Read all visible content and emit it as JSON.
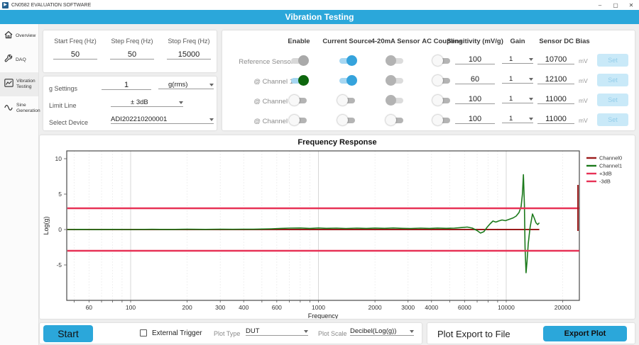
{
  "window": {
    "title": "CN0582 EVALUATION SOFTWARE",
    "controls": {
      "minimize": "–",
      "maximize": "▢",
      "close": "✕"
    }
  },
  "header": {
    "title": "Vibration Testing"
  },
  "sidebar": {
    "items": [
      {
        "label": "Overview",
        "icon": "home-icon",
        "selected": false
      },
      {
        "label": "DAQ",
        "icon": "wrench-icon",
        "selected": false
      },
      {
        "label": "Vibration Testing",
        "icon": "chart-icon",
        "selected": true
      },
      {
        "label": "Sine Generation",
        "icon": "sine-icon",
        "selected": false
      }
    ]
  },
  "sweep": {
    "fields": [
      {
        "label": "Start Freq (Hz)",
        "value": "50"
      },
      {
        "label": "Step Freq (Hz)",
        "value": "50"
      },
      {
        "label": "Stop Freq (Hz)",
        "value": "15000"
      }
    ]
  },
  "settings": {
    "g_label": "g Settings",
    "g_value": "1",
    "g_unit": "g(rms)",
    "limit_label": "Limit Line",
    "limit_value": "± 3dB",
    "device_label": "Select Device",
    "device_value": "ADI202210200001"
  },
  "channels": {
    "headers": [
      "Enable",
      "Current Source",
      "4-20mA Sensor",
      "AC Coupling",
      "Sensitivity (mV/g)",
      "Gain",
      "Sensor DC Bias"
    ],
    "mv_label": "mV",
    "set_label": "Set",
    "rows": [
      {
        "label": "Reference Sensor",
        "enable": "on-gray",
        "current_source": "on-blue",
        "sensor_420ma": "off-gray",
        "ac_coupling": "off",
        "sensitivity": "100",
        "gain": "1",
        "bias": "10700"
      },
      {
        "label": "@ Channel 1",
        "enable": "on-green",
        "current_source": "on-blue",
        "sensor_420ma": "off-gray",
        "ac_coupling": "off",
        "sensitivity": "60",
        "gain": "1",
        "bias": "12100"
      },
      {
        "label": "@ Channel 2",
        "enable": "off",
        "current_source": "off",
        "sensor_420ma": "off-gray",
        "ac_coupling": "off",
        "sensitivity": "100",
        "gain": "1",
        "bias": "11000"
      },
      {
        "label": "@ Channel 3",
        "enable": "off",
        "current_source": "off",
        "sensor_420ma": "off",
        "ac_coupling": "off",
        "sensitivity": "100",
        "gain": "1",
        "bias": "11000"
      }
    ]
  },
  "chart_data": {
    "type": "line",
    "title": "Frequency Response",
    "xlabel": "Frequency",
    "ylabel": "Log(g)",
    "x_scale": "log",
    "xlim": [
      46,
      24500
    ],
    "ylim": [
      -10,
      11.2
    ],
    "x_ticks": [
      60,
      100,
      200,
      300,
      400,
      600,
      1000,
      2000,
      3000,
      4000,
      6000,
      10000,
      20000
    ],
    "y_ticks": [
      -5,
      0,
      5,
      10
    ],
    "legend_position": "right",
    "grid": true,
    "series": [
      {
        "name": "Channel0",
        "color": "#9b1b1b",
        "width": 2,
        "x": [
          46,
          15000
        ],
        "y": [
          0,
          0
        ]
      },
      {
        "name": "Channel1",
        "color": "#1c7a1c",
        "width": 1.6,
        "x": [
          46,
          55,
          65,
          80,
          100,
          130,
          160,
          200,
          250,
          300,
          350,
          400,
          450,
          500,
          560,
          630,
          700,
          800,
          900,
          1000,
          1100,
          1250,
          1400,
          1600,
          1800,
          2000,
          2250,
          2500,
          2800,
          3100,
          3500,
          3900,
          4300,
          4800,
          5300,
          5800,
          6200,
          6600,
          7000,
          7300,
          7600,
          7900,
          8200,
          8500,
          8800,
          9100,
          9500,
          9900,
          10400,
          10900,
          11300,
          11700,
          12000,
          12200,
          12350,
          12500,
          12600,
          12750,
          12900,
          13100,
          13400,
          13800,
          14100,
          14400,
          14700,
          15000
        ],
        "y": [
          0.0,
          0.02,
          -0.01,
          0.02,
          0.0,
          0.03,
          0.01,
          0.04,
          0.02,
          0.05,
          0.03,
          0.05,
          0.04,
          0.07,
          0.1,
          0.16,
          0.2,
          0.22,
          0.16,
          0.22,
          0.17,
          0.2,
          0.15,
          0.2,
          0.16,
          0.21,
          0.17,
          0.22,
          0.17,
          0.15,
          0.2,
          0.16,
          0.21,
          0.17,
          0.2,
          0.28,
          0.35,
          0.2,
          -0.15,
          -0.5,
          -0.3,
          0.3,
          0.8,
          1.2,
          1.05,
          1.2,
          1.35,
          1.25,
          1.45,
          1.65,
          1.9,
          2.4,
          3.2,
          5.0,
          7.75,
          3.5,
          -2.5,
          -6.1,
          -4.5,
          -2.0,
          0.3,
          2.2,
          1.6,
          0.95,
          0.7,
          0.95
        ]
      },
      {
        "name": "+3dB",
        "color": "#e73256",
        "width": 2.4,
        "x": [
          46,
          24500
        ],
        "y": [
          3,
          3
        ]
      },
      {
        "name": "-3dB",
        "color": "#e73256",
        "width": 2.4,
        "x": [
          46,
          24500
        ],
        "y": [
          -3,
          -3
        ]
      }
    ],
    "edge_artifact": {
      "color": "#9b1b1b",
      "x": 24100,
      "y_from": -0.2,
      "y_to": 6.3
    }
  },
  "footer": {
    "start_label": "Start",
    "external_trigger_label": "External Trigger",
    "external_trigger_checked": false,
    "plot_type_label": "Plot Type",
    "plot_type_value": "DUT",
    "plot_scale_label": "Plot Scale",
    "plot_scale_value": "Decibel(Log(g))",
    "export_title": "Plot Export to File",
    "export_button_label": "Export Plot"
  },
  "colors": {
    "accent_blue": "#2ba7da",
    "toggle_green": "#0d660d",
    "channel0": "#9b1b1b",
    "channel1": "#1c7a1c",
    "limit_line": "#e73256"
  }
}
